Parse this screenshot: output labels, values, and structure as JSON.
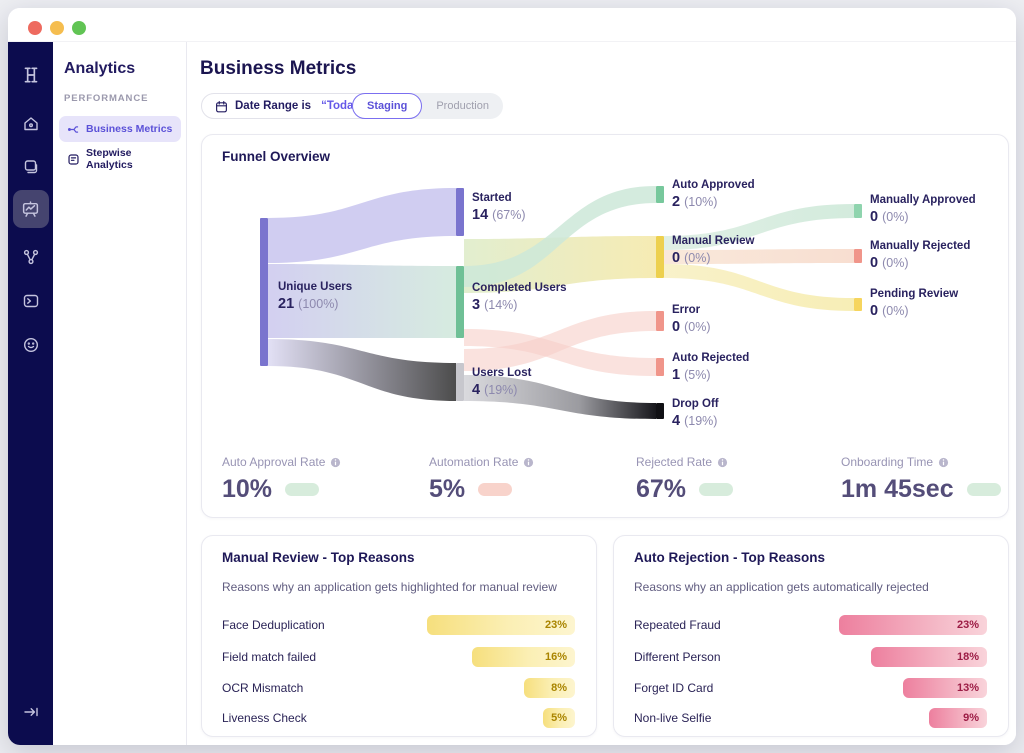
{
  "colors": {
    "accent_purple": "#5b51d8",
    "navy": "#1e1857",
    "sidebar_bg": "#0c0c4e",
    "node_purple": "#7a74ce",
    "node_green": "#6fc096",
    "node_yellow": "#edd04e",
    "node_red": "#f0958a",
    "node_grey": "#c7c7cd",
    "node_black": "#101014",
    "pill_green": "#d7ecdc",
    "pill_pink": "#f8d3cb",
    "traffic_red": "#ee6a5f",
    "traffic_yellow": "#f5bd4f",
    "traffic_green": "#61c454"
  },
  "nav": {
    "logo": "H",
    "items": [
      "home",
      "pages",
      "analytics",
      "flows",
      "terminal",
      "feedback"
    ],
    "active": "analytics",
    "collapse": "collapse-sidebar"
  },
  "sidebar": {
    "title": "Analytics",
    "section": "PERFORMANCE",
    "items": [
      {
        "label": "Business Metrics",
        "active": true
      },
      {
        "label": "Stepwise Analytics",
        "active": false
      }
    ]
  },
  "header": {
    "title": "Business Metrics",
    "date_filter": {
      "prefix": "Date Range is",
      "value": "“Today”"
    },
    "env_toggle": {
      "options": [
        "Staging",
        "Production"
      ],
      "selected": "Staging"
    }
  },
  "funnel": {
    "title": "Funnel Overview",
    "nodes": [
      {
        "label": "Unique Users",
        "value": "21",
        "pct": "(100%)"
      },
      {
        "label": "Started",
        "value": "14",
        "pct": "(67%)"
      },
      {
        "label": "Completed Users",
        "value": "3",
        "pct": "(14%)"
      },
      {
        "label": "Users Lost",
        "value": "4",
        "pct": "(19%)"
      },
      {
        "label": "Auto Approved",
        "value": "2",
        "pct": "(10%)"
      },
      {
        "label": "Manual Review",
        "value": "0",
        "pct": "(0%)"
      },
      {
        "label": "Error",
        "value": "0",
        "pct": "(0%)"
      },
      {
        "label": "Auto Rejected",
        "value": "1",
        "pct": "(5%)"
      },
      {
        "label": "Drop Off",
        "value": "4",
        "pct": "(19%)"
      },
      {
        "label": "Manually Approved",
        "value": "0",
        "pct": "(0%)"
      },
      {
        "label": "Manually Rejected",
        "value": "0",
        "pct": "(0%)"
      },
      {
        "label": "Pending Review",
        "value": "0",
        "pct": "(0%)"
      }
    ]
  },
  "metrics": {
    "items": [
      {
        "label": "Auto Approval Rate",
        "value": "10%",
        "pill": "green"
      },
      {
        "label": "Automation Rate",
        "value": "5%",
        "pill": "pink"
      },
      {
        "label": "Rejected Rate",
        "value": "67%",
        "pill": "green"
      },
      {
        "label": "Onboarding Time",
        "value": "1m 45sec",
        "pill": "green"
      }
    ]
  },
  "manual_review": {
    "title": "Manual Review - Top Reasons",
    "subtitle": "Reasons why an application gets highlighted for manual review",
    "rows": [
      {
        "label": "Face Deduplication",
        "pct": 23,
        "pct_label": "23%"
      },
      {
        "label": "Field match failed",
        "pct": 16,
        "pct_label": "16%"
      },
      {
        "label": "OCR Mismatch",
        "pct": 8,
        "pct_label": "8%"
      },
      {
        "label": "Liveness Check",
        "pct": 5,
        "pct_label": "5%"
      }
    ]
  },
  "auto_rejection": {
    "title": "Auto Rejection - Top Reasons",
    "subtitle": "Reasons why an application gets automatically rejected",
    "rows": [
      {
        "label": "Repeated Fraud",
        "pct": 23,
        "pct_label": "23%"
      },
      {
        "label": "Different Person",
        "pct": 18,
        "pct_label": "18%"
      },
      {
        "label": "Forget ID Card",
        "pct": 13,
        "pct_label": "13%"
      },
      {
        "label": "Non-live Selfie",
        "pct": 9,
        "pct_label": "9%"
      }
    ]
  },
  "chart_data": [
    {
      "type": "sankey",
      "title": "Funnel Overview",
      "nodes": [
        {
          "name": "Unique Users",
          "value": 21,
          "pct": "100%",
          "color": "#7a74ce"
        },
        {
          "name": "Started",
          "value": 14,
          "pct": "67%",
          "color": "#7a74ce"
        },
        {
          "name": "Completed Users",
          "value": 3,
          "pct": "14%",
          "color": "#6fc096"
        },
        {
          "name": "Users Lost",
          "value": 4,
          "pct": "19%",
          "color": "#c7c7cd"
        },
        {
          "name": "Auto Approved",
          "value": 2,
          "pct": "10%",
          "color": "#77c89c"
        },
        {
          "name": "Manual Review",
          "value": 0,
          "pct": "0%",
          "color": "#edd04e"
        },
        {
          "name": "Error",
          "value": 0,
          "pct": "0%",
          "color": "#f0958a"
        },
        {
          "name": "Auto Rejected",
          "value": 1,
          "pct": "5%",
          "color": "#f0958a"
        },
        {
          "name": "Drop Off",
          "value": 4,
          "pct": "19%",
          "color": "#101014"
        },
        {
          "name": "Manually Approved",
          "value": 0,
          "pct": "0%",
          "color": "#8fd4ae"
        },
        {
          "name": "Manually Rejected",
          "value": 0,
          "pct": "0%",
          "color": "#f0958a"
        },
        {
          "name": "Pending Review",
          "value": 0,
          "pct": "0%",
          "color": "#f6d55e"
        }
      ],
      "links": [
        {
          "source": "Unique Users",
          "target": "Started"
        },
        {
          "source": "Unique Users",
          "target": "Completed Users"
        },
        {
          "source": "Unique Users",
          "target": "Users Lost"
        },
        {
          "source": "Completed Users",
          "target": "Auto Approved"
        },
        {
          "source": "Started",
          "target": "Manual Review"
        },
        {
          "source": "Completed Users",
          "target": "Auto Rejected"
        },
        {
          "source": "Users Lost",
          "target": "Error"
        },
        {
          "source": "Users Lost",
          "target": "Drop Off"
        },
        {
          "source": "Manual Review",
          "target": "Manually Approved"
        },
        {
          "source": "Manual Review",
          "target": "Manually Rejected"
        },
        {
          "source": "Manual Review",
          "target": "Pending Review"
        }
      ]
    },
    {
      "type": "bar",
      "title": "Manual Review - Top Reasons",
      "categories": [
        "Face Deduplication",
        "Field match failed",
        "OCR Mismatch",
        "Liveness Check"
      ],
      "values": [
        23,
        16,
        8,
        5
      ],
      "unit": "%"
    },
    {
      "type": "bar",
      "title": "Auto Rejection - Top Reasons",
      "categories": [
        "Repeated Fraud",
        "Different Person",
        "Forget ID Card",
        "Non-live Selfie"
      ],
      "values": [
        23,
        18,
        13,
        9
      ],
      "unit": "%"
    }
  ]
}
